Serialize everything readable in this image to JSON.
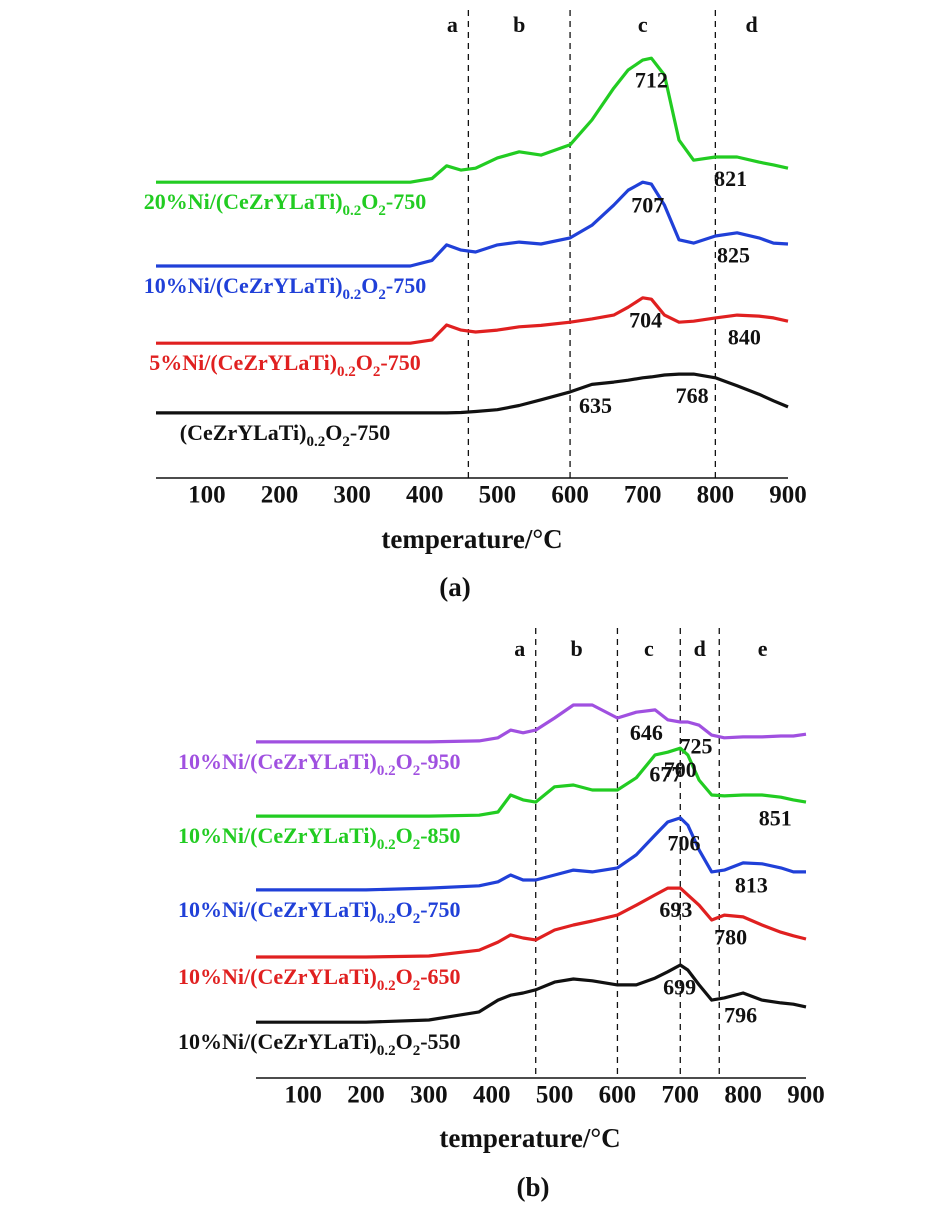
{
  "chart_data": [
    {
      "type": "line",
      "caption": "(a)",
      "xlabel": "temperature/°C",
      "xlim": [
        30,
        900
      ],
      "xticks": [
        100,
        200,
        300,
        400,
        500,
        600,
        700,
        800,
        900
      ],
      "ylim": [
        0,
        100
      ],
      "regions": [
        "a",
        "b",
        "c",
        "d"
      ],
      "dividers": [
        460,
        600,
        800
      ],
      "x": [
        30,
        100,
        200,
        300,
        380,
        410,
        430,
        450,
        470,
        500,
        530,
        560,
        600,
        630,
        660,
        680,
        700,
        712,
        730,
        750,
        770,
        800,
        830,
        860,
        880,
        900
      ],
      "series": [
        {
          "name": "20%Ni/(CeZrYLaTi)0.2O2-750",
          "color": "#22cc22",
          "peaks": [
            712,
            821
          ],
          "values": [
            63.2,
            63.2,
            63.2,
            63.2,
            63.2,
            64,
            66.7,
            65.8,
            66.2,
            68.4,
            69.7,
            69,
            71.2,
            76.5,
            83.3,
            87.2,
            89.3,
            89.7,
            86.1,
            72.2,
            67.9,
            68.6,
            68.6,
            67.5,
            66.9,
            66.2
          ]
        },
        {
          "name": "10%Ni/(CeZrYLaTi)0.2O2-750",
          "color": "#2040d8",
          "peaks": [
            707,
            825
          ],
          "values": [
            45.3,
            45.3,
            45.3,
            45.3,
            45.3,
            46.5,
            49.8,
            48.7,
            48.3,
            49.8,
            50.4,
            50,
            51.3,
            54,
            58.3,
            61.5,
            63.2,
            62.8,
            58.3,
            50.9,
            50.2,
            51.7,
            52.4,
            51.3,
            50.2,
            50
          ]
        },
        {
          "name": "5%Ni/(CeZrYLaTi)0.2O2-750",
          "color": "#e02020",
          "peaks": [
            704,
            840
          ],
          "values": [
            28.8,
            28.8,
            28.8,
            28.8,
            28.8,
            29.5,
            32.7,
            31.6,
            31.2,
            31.6,
            32.3,
            32.6,
            33.3,
            34,
            34.8,
            36.5,
            38.5,
            38.2,
            34.8,
            33.3,
            33.5,
            34.2,
            34.8,
            34.6,
            34.2,
            33.5
          ]
        },
        {
          "name": "(CeZrYLaTi)0.2O2-750",
          "color": "#111111",
          "peaks": [
            635,
            768
          ],
          "values": [
            13.9,
            13.9,
            13.9,
            13.9,
            13.9,
            13.9,
            13.9,
            14,
            14.2,
            14.6,
            15.5,
            16.7,
            18.4,
            20,
            20.5,
            20.9,
            21.4,
            21.6,
            22,
            22.2,
            22.2,
            21.4,
            19.7,
            17.9,
            16.5,
            15.2
          ]
        }
      ]
    },
    {
      "type": "line",
      "caption": "(b)",
      "xlabel": "temperature/°C",
      "xlim": [
        25,
        900
      ],
      "xticks": [
        100,
        200,
        300,
        400,
        500,
        600,
        700,
        800,
        900
      ],
      "ylim": [
        0,
        100
      ],
      "regions": [
        "a",
        "b",
        "c",
        "d",
        "e"
      ],
      "dividers": [
        470,
        600,
        700,
        762
      ],
      "x": [
        25,
        100,
        200,
        300,
        380,
        410,
        430,
        450,
        470,
        500,
        530,
        560,
        600,
        630,
        660,
        680,
        700,
        712,
        730,
        750,
        770,
        800,
        830,
        860,
        880,
        900
      ],
      "series": [
        {
          "name": "10%Ni/(CeZrYLaTi)0.2O2-950",
          "color": "#a050e0",
          "peaks": [
            646,
            725
          ],
          "values": [
            74.7,
            74.7,
            74.7,
            74.7,
            74.9,
            75.6,
            77.3,
            76.7,
            77.3,
            80,
            82.9,
            82.9,
            80,
            81.3,
            81.8,
            79.6,
            79.1,
            79.1,
            78.4,
            76.2,
            75.6,
            75.8,
            75.8,
            76,
            76,
            76.4
          ]
        },
        {
          "name": "10%Ni/(CeZrYLaTi)0.2O2-850",
          "color": "#22cc22",
          "peaks": [
            677,
            700,
            851
          ],
          "values": [
            58.2,
            58.2,
            58.2,
            58.2,
            58.4,
            59.1,
            62.9,
            61.8,
            61.3,
            64.7,
            65.1,
            64,
            64,
            66.7,
            71.8,
            72.4,
            73.3,
            71.8,
            66.2,
            62.9,
            62.7,
            62.9,
            62.9,
            62.4,
            61.8,
            61.3
          ]
        },
        {
          "name": "10%Ni/(CeZrYLaTi)0.2O2-750",
          "color": "#2040d8",
          "peaks": [
            706,
            813
          ],
          "values": [
            41.8,
            41.8,
            41.8,
            42.2,
            42.7,
            43.6,
            45.1,
            44,
            44,
            45.1,
            46.2,
            45.8,
            46.7,
            49.6,
            54,
            56.9,
            57.8,
            56.2,
            50.7,
            45.8,
            46.2,
            47.8,
            47.6,
            46.7,
            45.8,
            45.8
          ]
        },
        {
          "name": "10%Ni/(CeZrYLaTi)0.2O2-650",
          "color": "#e02020",
          "peaks": [
            693,
            780
          ],
          "values": [
            26.9,
            26.9,
            26.9,
            27.1,
            28.4,
            30.2,
            31.8,
            31.1,
            30.7,
            32.9,
            34,
            34.9,
            36.2,
            38.4,
            40.7,
            42.2,
            42.2,
            40.7,
            38.4,
            35.1,
            36.2,
            35.8,
            34,
            32.4,
            31.6,
            30.9
          ]
        },
        {
          "name": "10%Ni/(CeZrYLaTi)0.2O2-550",
          "color": "#111111",
          "peaks": [
            699,
            796
          ],
          "values": [
            12.4,
            12.4,
            12.4,
            12.9,
            14.7,
            17.3,
            18.4,
            18.9,
            19.6,
            21.3,
            22,
            21.6,
            20.7,
            20.7,
            22.2,
            23.6,
            25.1,
            24,
            20.7,
            17.3,
            17.8,
            18.9,
            17.3,
            16.7,
            16.4,
            15.8
          ]
        }
      ]
    }
  ]
}
